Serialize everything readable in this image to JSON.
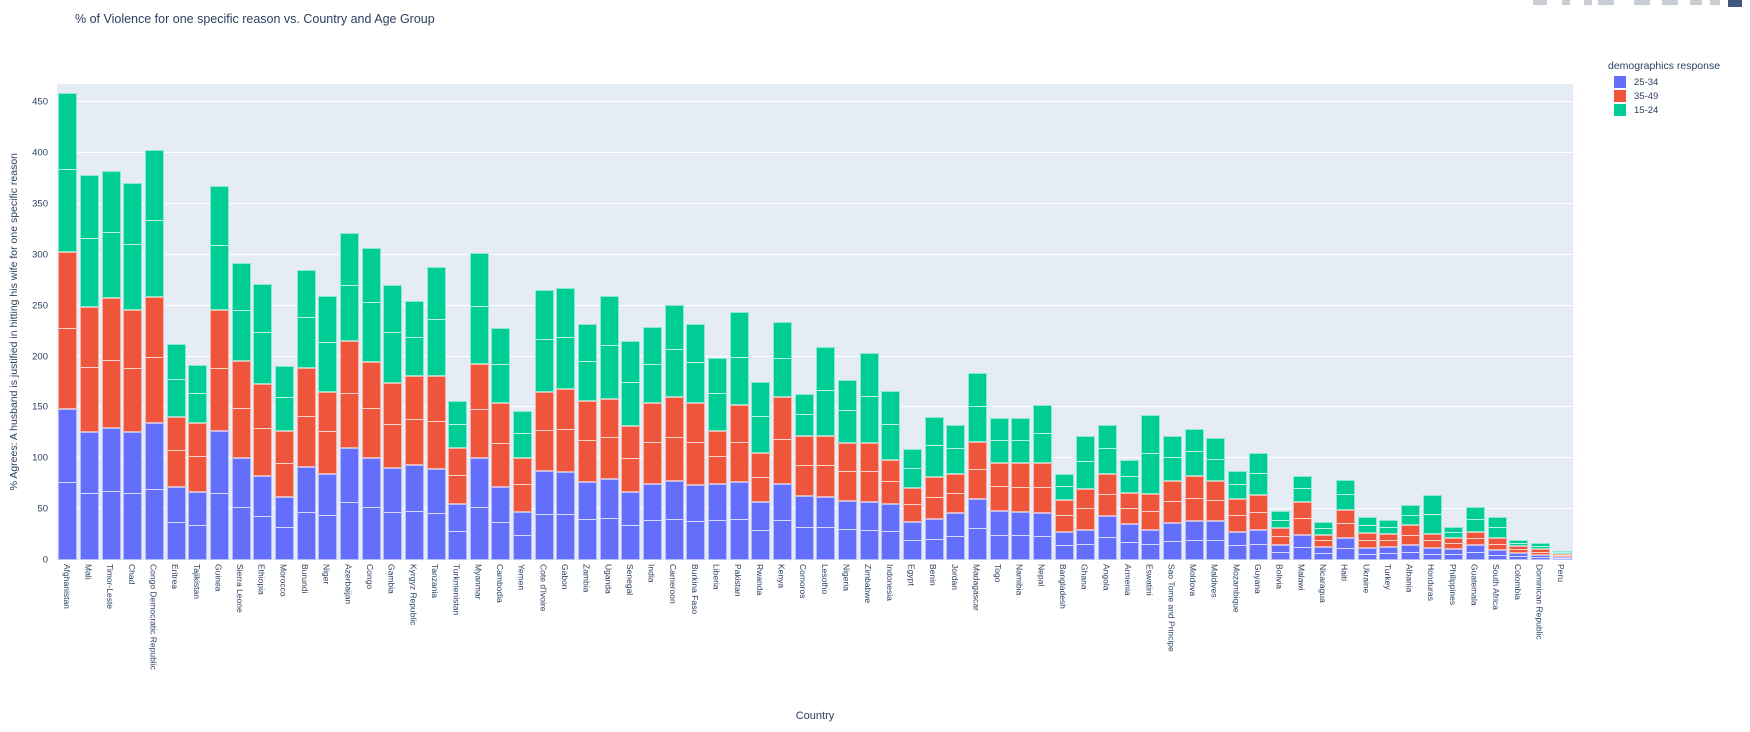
{
  "title": "% of Violence for one specific reason vs. Country and Age Group",
  "axes": {
    "x_title": "Country",
    "y_title": "% Agrees: A husband is justified in hitting his wife for one specific reason",
    "y_ticks": [
      0,
      50,
      100,
      150,
      200,
      250,
      300,
      350,
      400,
      450
    ]
  },
  "legend": {
    "title": "demographics response",
    "items": [
      {
        "label": "25-34",
        "color": "#636EFA"
      },
      {
        "label": "35-49",
        "color": "#EF553B"
      },
      {
        "label": "15-24",
        "color": "#00CC96"
      }
    ]
  },
  "modebar": {
    "fragment_color": "#c9cdd4",
    "logo_color": "#3f577c"
  },
  "colors": {
    "plot_background": "#E5ECF6",
    "gridline": "#ffffff",
    "text": "#2a3f5f"
  },
  "chart_data": {
    "type": "bar",
    "stacked": true,
    "title": "% of Violence for one specific reason vs. Country and Age Group",
    "xlabel": "Country",
    "ylabel": "% Agrees: A husband is justified in hitting his wife for one specific reason",
    "ylim": [
      0,
      468
    ],
    "grid": true,
    "legend_position": "right",
    "categories": [
      "Afghanistan",
      "Mali",
      "Timor-Leste",
      "Chad",
      "Congo Democratic Republic",
      "Eritrea",
      "Tajikistan",
      "Guinea",
      "Sierra Leone",
      "Ethiopia",
      "Morocco",
      "Burundi",
      "Niger",
      "Azerbaijan",
      "Congo",
      "Gambia",
      "Kyrgyz Republic",
      "Tanzania",
      "Turkmenistan",
      "Myanmar",
      "Cambodia",
      "Yemen",
      "Cote d'Ivoire",
      "Gabon",
      "Zambia",
      "Uganda",
      "Senegal",
      "India",
      "Cameroon",
      "Burkina Faso",
      "Liberia",
      "Pakistan",
      "Rwanda",
      "Kenya",
      "Comoros",
      "Lesotho",
      "Nigeria",
      "Zimbabwe",
      "Indonesia",
      "Egypt",
      "Benin",
      "Jordan",
      "Madagascar",
      "Togo",
      "Namibia",
      "Nepal",
      "Bangladesh",
      "Ghana",
      "Angola",
      "Armenia",
      "Eswatini",
      "Sao Tome and Principe",
      "Moldova",
      "Maldives",
      "Mozambique",
      "Guyana",
      "Bolivia",
      "Malawi",
      "Nicaragua",
      "Haiti",
      "Ukraine",
      "Turkey",
      "Albania",
      "Honduras",
      "Philippines",
      "Guatemala",
      "South Africa",
      "Colombia",
      "Dominican Republic",
      "Peru"
    ],
    "series": [
      {
        "name": "25-34",
        "color": "#636EFA",
        "values": [
          148,
          126,
          130,
          126,
          135,
          72,
          67,
          127,
          100,
          83,
          62,
          91,
          85,
          110,
          100,
          90,
          93,
          89,
          55,
          100,
          72,
          47,
          88,
          87,
          77,
          80,
          67,
          75,
          78,
          74,
          75,
          77,
          57,
          75,
          63,
          62,
          58,
          57,
          55,
          37,
          40,
          46,
          60,
          48,
          47,
          46,
          28,
          30,
          43,
          35,
          30,
          36,
          38,
          38,
          28,
          30,
          15,
          25,
          13,
          22,
          12,
          13,
          15,
          12,
          11,
          15,
          10,
          7,
          5,
          3
        ]
      },
      {
        "name": "35-49",
        "color": "#EF553B",
        "values": [
          155,
          123,
          128,
          120,
          124,
          69,
          68,
          119,
          96,
          90,
          65,
          98,
          80,
          105,
          95,
          84,
          88,
          92,
          55,
          93,
          82,
          53,
          77,
          81,
          79,
          78,
          65,
          79,
          82,
          80,
          52,
          75,
          48,
          85,
          59,
          60,
          57,
          58,
          43,
          34,
          42,
          39,
          56,
          47,
          48,
          49,
          31,
          40,
          42,
          31,
          35,
          42,
          45,
          40,
          32,
          34,
          16,
          32,
          12,
          27,
          15,
          13,
          19,
          14,
          11,
          13,
          12,
          7,
          6,
          3
        ]
      },
      {
        "name": "15-24",
        "color": "#00CC96",
        "values": [
          156,
          130,
          124,
          125,
          144,
          71,
          57,
          122,
          96,
          98,
          64,
          96,
          95,
          107,
          112,
          96,
          74,
          107,
          46,
          109,
          74,
          47,
          100,
          99,
          76,
          102,
          83,
          75,
          91,
          78,
          72,
          92,
          70,
          74,
          41,
          87,
          62,
          89,
          68,
          38,
          59,
          48,
          68,
          45,
          45,
          57,
          26,
          52,
          48,
          32,
          78,
          44,
          46,
          42,
          28,
          41,
          17,
          26,
          12,
          30,
          15,
          13,
          20,
          38,
          10,
          24,
          20,
          6,
          6,
          3
        ]
      }
    ]
  }
}
